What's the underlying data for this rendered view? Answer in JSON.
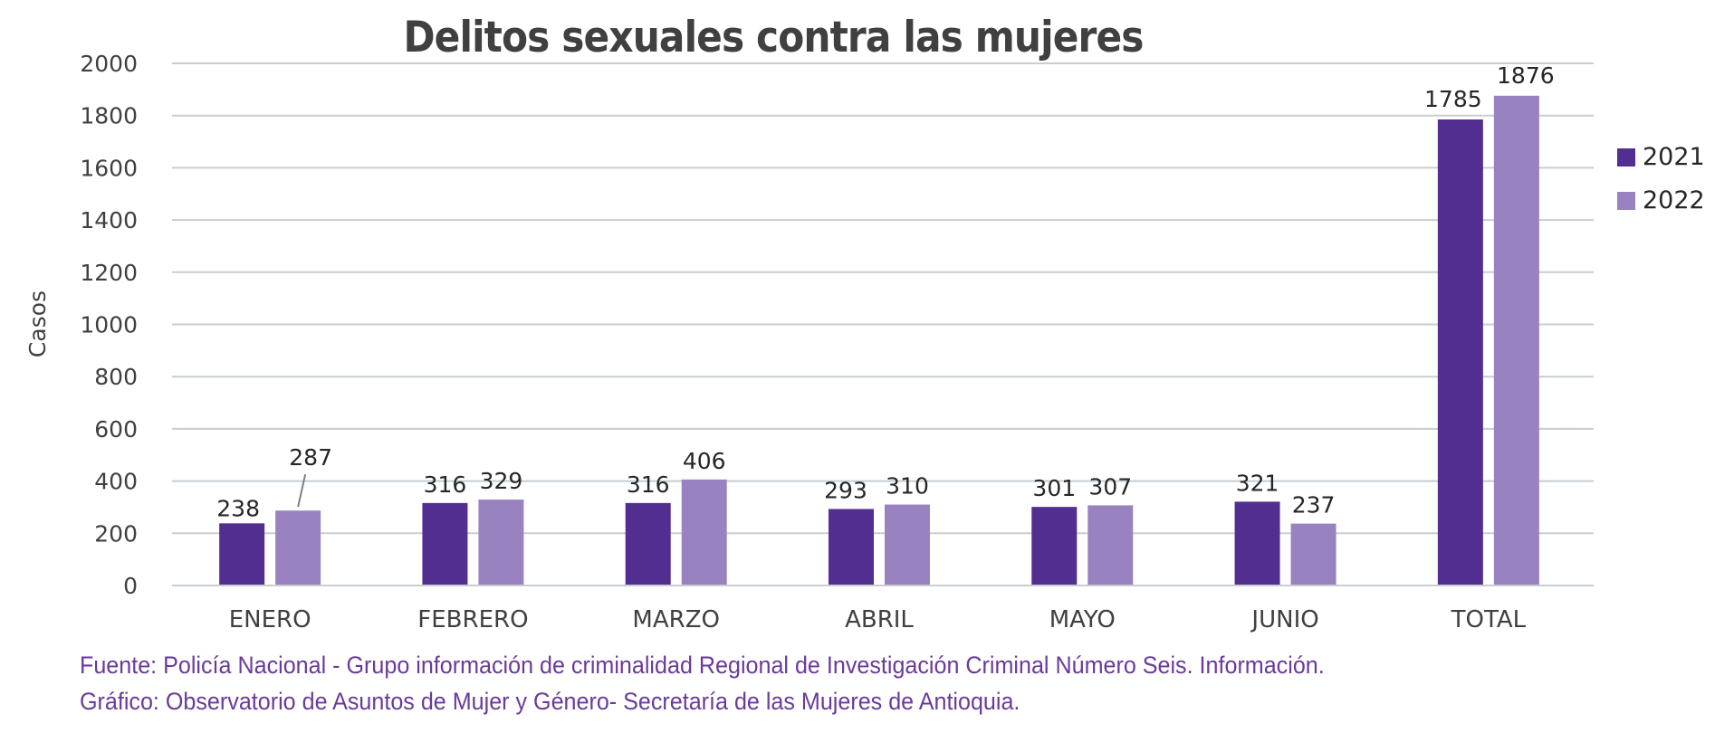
{
  "chart_data": {
    "type": "bar",
    "title": "Delitos sexuales contra las mujeres",
    "xlabel": "",
    "ylabel": "Casos",
    "ylim": [
      0,
      2000
    ],
    "yticks": [
      "0",
      "200",
      "400",
      "600",
      "800",
      "1000",
      "1200",
      "1400",
      "1600",
      "1800",
      "2000"
    ],
    "grid": true,
    "legend_position": "right",
    "categories": [
      "ENERO",
      "FEBRERO",
      "MARZO",
      "ABRIL",
      "MAYO",
      "JUNIO",
      "TOTAL"
    ],
    "series": [
      {
        "name": "2021",
        "color": "#512e8f",
        "values": [
          238,
          316,
          316,
          293,
          301,
          321,
          1785
        ],
        "labels": [
          "238",
          "316",
          "316",
          "293",
          "301",
          "321",
          "1785"
        ]
      },
      {
        "name": "2022",
        "color": "#9883c0",
        "values": [
          287,
          329,
          406,
          310,
          307,
          237,
          1876
        ],
        "labels": [
          "287",
          "329",
          "406",
          "310",
          "307",
          "237",
          "1876"
        ]
      }
    ]
  },
  "source": {
    "line1": "Fuente: Policía Nacional - Grupo información de criminalidad Regional de Investigación Criminal Número Seis. Información.",
    "line2": "Gráfico: Observatorio de Asuntos de Mujer y Género- Secretaría de las Mujeres de Antioquia."
  },
  "colors": {
    "grid": "#c8cdd0",
    "text": "#404040",
    "source_text": "#6a3a9a"
  }
}
